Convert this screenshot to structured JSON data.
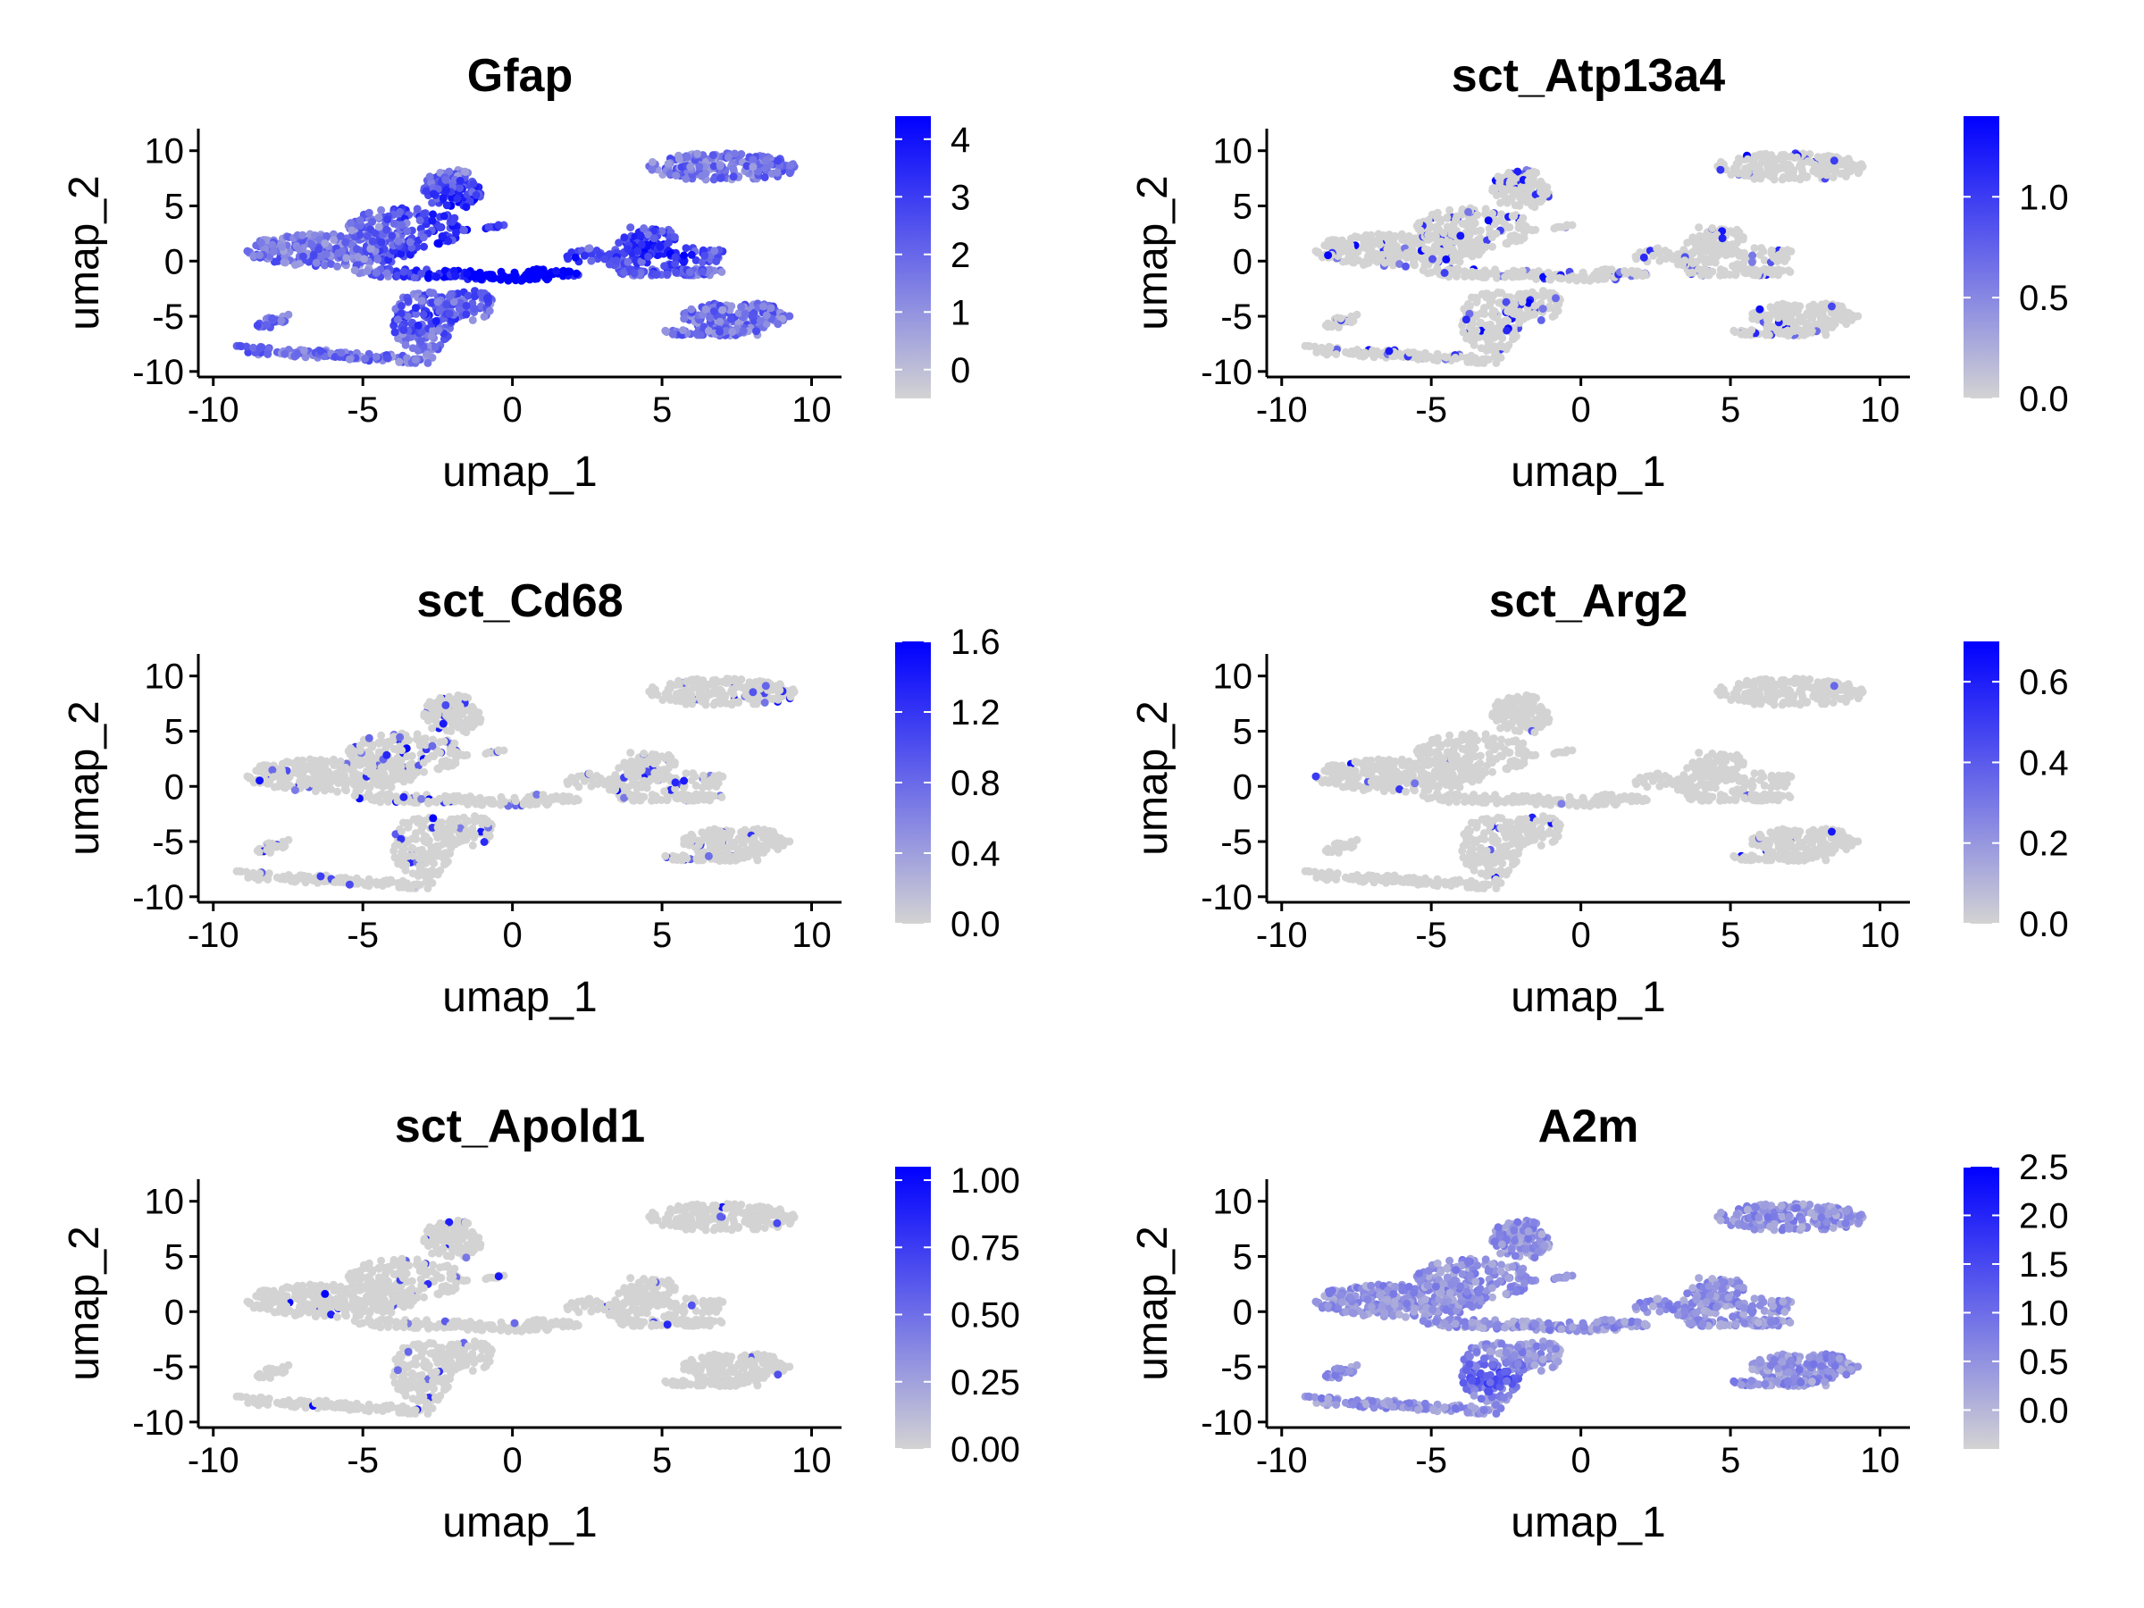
{
  "colors": {
    "low": "#d3d3d3",
    "high": "#0000ff",
    "axis": "#000000"
  },
  "chart_data": [
    {
      "type": "scatter",
      "title": "Gfap",
      "xlabel": "umap_1",
      "ylabel": "umap_2",
      "xlim": [
        -10.5,
        11
      ],
      "ylim": [
        -10.5,
        12
      ],
      "xticks": [
        -10,
        -5,
        0,
        5,
        10
      ],
      "yticks": [
        -10,
        -5,
        0,
        5,
        10
      ],
      "legend": {
        "placement": "right",
        "min": -0.5,
        "max": 4.4,
        "ticks": [
          0,
          1,
          2,
          3,
          4
        ],
        "labels": [
          "0",
          "1",
          "2",
          "3",
          "4"
        ]
      },
      "base_level": 0.45,
      "hotspots": [
        {
          "x": -1,
          "y": 0,
          "w": 0.85,
          "r": 4
        },
        {
          "x": 1,
          "y": -1,
          "w": 0.7,
          "r": 2.5
        },
        {
          "x": -2,
          "y": 5,
          "w": 0.5,
          "r": 3
        },
        {
          "x": 5,
          "y": 1,
          "w": 0.5,
          "r": 3
        },
        {
          "x": -3,
          "y": -5,
          "w": 0.35,
          "r": 2
        }
      ],
      "sparse": 0
    },
    {
      "type": "scatter",
      "title": "sct_Atp13a4",
      "xlabel": "umap_1",
      "ylabel": "umap_2",
      "xlim": [
        -10.5,
        11
      ],
      "ylim": [
        -10.5,
        12
      ],
      "xticks": [
        -10,
        -5,
        0,
        5,
        10
      ],
      "yticks": [
        -10,
        -5,
        0,
        5,
        10
      ],
      "legend": {
        "placement": "right",
        "min": 0,
        "max": 1.4,
        "ticks": [
          0,
          0.5,
          1.0
        ],
        "labels": [
          "0.0",
          "0.5",
          "1.0"
        ]
      },
      "base_level": 0,
      "hotspots": [],
      "sparse": 0.09
    },
    {
      "type": "scatter",
      "title": "sct_Cd68",
      "xlabel": "umap_1",
      "ylabel": "umap_2",
      "xlim": [
        -10.5,
        11
      ],
      "ylim": [
        -10.5,
        12
      ],
      "xticks": [
        -10,
        -5,
        0,
        5,
        10
      ],
      "yticks": [
        -10,
        -5,
        0,
        5,
        10
      ],
      "legend": {
        "placement": "right",
        "min": 0,
        "max": 1.6,
        "ticks": [
          0,
          0.4,
          0.8,
          1.2,
          1.6
        ],
        "labels": [
          "0.0",
          "0.4",
          "0.8",
          "1.2",
          "1.6"
        ]
      },
      "base_level": 0,
      "hotspots": [],
      "sparse": 0.07
    },
    {
      "type": "scatter",
      "title": "sct_Arg2",
      "xlabel": "umap_1",
      "ylabel": "umap_2",
      "xlim": [
        -10.5,
        11
      ],
      "ylim": [
        -10.5,
        12
      ],
      "xticks": [
        -10,
        -5,
        0,
        5,
        10
      ],
      "yticks": [
        -10,
        -5,
        0,
        5,
        10
      ],
      "legend": {
        "placement": "right",
        "min": 0,
        "max": 0.7,
        "ticks": [
          0,
          0.2,
          0.4,
          0.6
        ],
        "labels": [
          "0.0",
          "0.2",
          "0.4",
          "0.6"
        ]
      },
      "base_level": 0,
      "hotspots": [],
      "sparse": 0.012
    },
    {
      "type": "scatter",
      "title": "sct_Apold1",
      "xlabel": "umap_1",
      "ylabel": "umap_2",
      "xlim": [
        -10.5,
        11
      ],
      "ylim": [
        -10.5,
        12
      ],
      "xticks": [
        -10,
        -5,
        0,
        5,
        10
      ],
      "yticks": [
        -10,
        -5,
        0,
        5,
        10
      ],
      "legend": {
        "placement": "right",
        "min": 0,
        "max": 1.05,
        "ticks": [
          0,
          0.25,
          0.5,
          0.75,
          1.0
        ],
        "labels": [
          "0.00",
          "0.25",
          "0.50",
          "0.75",
          "1.00"
        ]
      },
      "base_level": 0,
      "hotspots": [],
      "sparse": 0.03
    },
    {
      "type": "scatter",
      "title": "A2m",
      "xlabel": "umap_1",
      "ylabel": "umap_2",
      "xlim": [
        -10.5,
        11
      ],
      "ylim": [
        -10.5,
        12
      ],
      "xticks": [
        -10,
        -5,
        0,
        5,
        10
      ],
      "yticks": [
        -10,
        -5,
        0,
        5,
        10
      ],
      "legend": {
        "placement": "right",
        "min": -0.4,
        "max": 2.5,
        "ticks": [
          0,
          0.5,
          1.0,
          1.5,
          2.0,
          2.5
        ],
        "labels": [
          "0.0",
          "0.5",
          "1.0",
          "1.5",
          "2.0",
          "2.5"
        ]
      },
      "base_level": 0.3,
      "hotspots": [
        {
          "x": -3,
          "y": -6,
          "w": 0.45,
          "r": 2
        },
        {
          "x": -1,
          "y": 1,
          "w": 0.25,
          "r": 2
        }
      ],
      "sparse": 0
    }
  ]
}
